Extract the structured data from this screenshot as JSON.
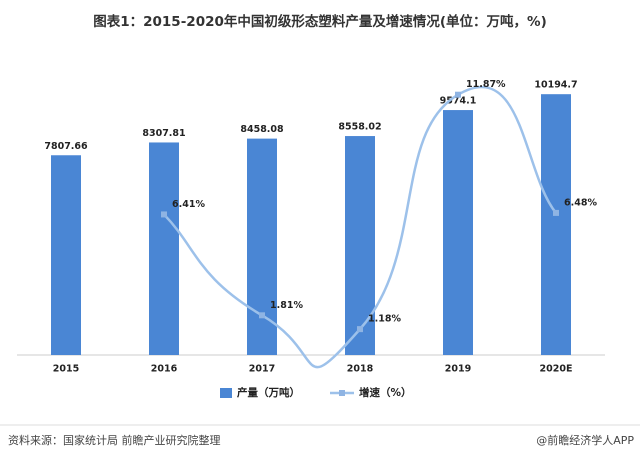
{
  "chart_data": {
    "type": "bar-line",
    "title": "图表1：2015-2020年中国初级形态塑料产量及增速情况(单位：万吨，%)",
    "categories": [
      "2015",
      "2016",
      "2017",
      "2018",
      "2019",
      "2020E"
    ],
    "series": [
      {
        "name": "产量（万吨）",
        "type": "bar",
        "color": "#4a86d4",
        "values": [
          7807.66,
          8307.81,
          8458.08,
          8558.02,
          9574.1,
          10194.7
        ]
      },
      {
        "name": "增速（%）",
        "type": "line",
        "axis": "y2",
        "color": "#9dc1ea",
        "values": [
          null,
          6.41,
          1.81,
          1.18,
          11.87,
          6.48
        ],
        "value_labels": [
          null,
          "6.41%",
          "1.81%",
          "1.18%",
          "11.87%",
          "6.48%"
        ]
      }
    ],
    "ylim": [
      0,
      12000
    ],
    "y2lim": [
      0,
      14
    ],
    "legend": "bottom",
    "source": "资料来源：国家统计局 前瞻产业研究院整理",
    "credit": "@前瞻经济学人APP"
  }
}
